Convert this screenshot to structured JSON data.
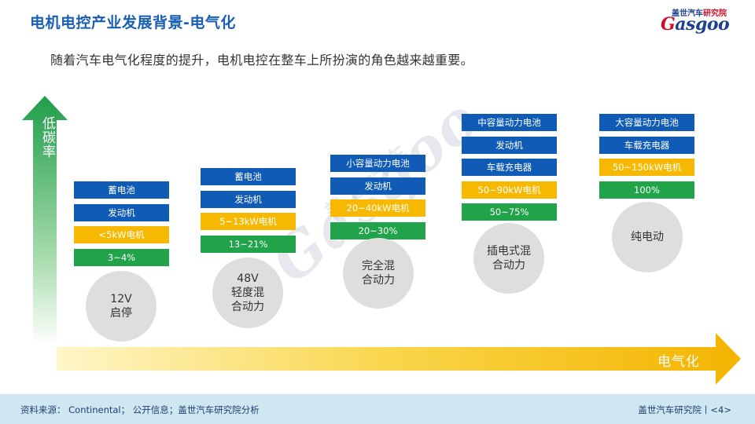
{
  "header": {
    "title": "电机电控产业发展背景-电气化",
    "subtitle": "随着汽车电气化程度的提升，电机电控在整车上所扮演的角色越来越重要。",
    "logo_top_a": "盖世汽车",
    "logo_top_b": "研究院",
    "logo_main_a": "G",
    "logo_main_b": "asgoo"
  },
  "axes": {
    "y_label": "低碳率",
    "x_label": "电气化"
  },
  "stages": [
    {
      "circle": "12V\n启停",
      "boxes": [
        {
          "text": "蓄电池",
          "color": "blue"
        },
        {
          "text": "发动机",
          "color": "blue"
        },
        {
          "text": "<5kW电机",
          "color": "yellow"
        },
        {
          "text": "3~4%",
          "color": "green"
        }
      ]
    },
    {
      "circle": "48V\n轻度混\n合动力",
      "boxes": [
        {
          "text": "蓄电池",
          "color": "blue"
        },
        {
          "text": "发动机",
          "color": "blue"
        },
        {
          "text": "5~13kW电机",
          "color": "yellow"
        },
        {
          "text": "13~21%",
          "color": "green"
        }
      ]
    },
    {
      "circle": "完全混\n合动力",
      "boxes": [
        {
          "text": "小容量动力电池",
          "color": "blue"
        },
        {
          "text": "发动机",
          "color": "blue"
        },
        {
          "text": "20~40kW电机",
          "color": "yellow"
        },
        {
          "text": "20~30%",
          "color": "green"
        }
      ]
    },
    {
      "circle": "插电式混\n合动力",
      "boxes": [
        {
          "text": "中容量动力电池",
          "color": "blue"
        },
        {
          "text": "发动机",
          "color": "blue"
        },
        {
          "text": "车载充电器",
          "color": "blue"
        },
        {
          "text": "50~90kW电机",
          "color": "yellow"
        },
        {
          "text": "50~75%",
          "color": "green"
        }
      ]
    },
    {
      "circle": "纯电动",
      "boxes": [
        {
          "text": "大容量动力电池",
          "color": "blue"
        },
        {
          "text": "车载充电器",
          "color": "blue"
        },
        {
          "text": "50~150kW电机",
          "color": "yellow"
        },
        {
          "text": "100%",
          "color": "green"
        }
      ]
    }
  ],
  "watermark": {
    "text": "Gasgoo",
    "cn": "盖世汽车"
  },
  "footer": {
    "source": "资料来源： Continental； 公开信息；盖世汽车研究院分析",
    "page": "盖世汽车研究院丨<4>"
  },
  "colors": {
    "blue": "#0f5bb5",
    "yellow": "#f6b800",
    "green": "#21a34a",
    "title": "#1a5fb4",
    "footer_bg": "#cfe7f1"
  }
}
